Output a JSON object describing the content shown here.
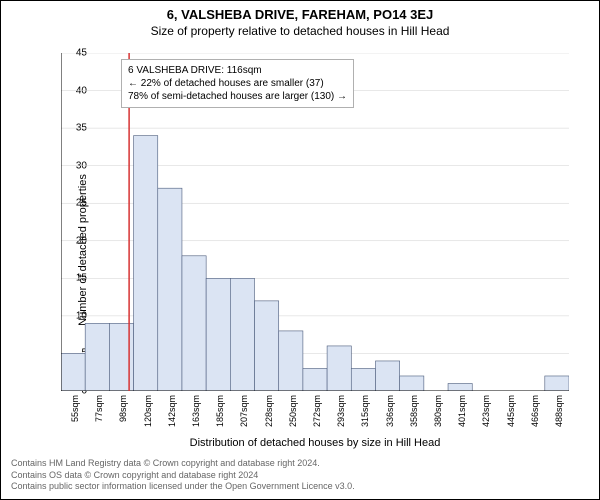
{
  "title": "6, VALSHEBA DRIVE, FAREHAM, PO14 3EJ",
  "subtitle": "Size of property relative to detached houses in Hill Head",
  "xlabel": "Distribution of detached houses by size in Hill Head",
  "ylabel": "Number of detached properties",
  "footer1": "Contains HM Land Registry data © Crown copyright and database right 2024.",
  "footer2": "Contains OS data © Crown copyright and database right 2024",
  "footer3": "Contains public sector information licensed under the Open Government Licence v3.0.",
  "callout": {
    "line1": "6 VALSHEBA DRIVE: 116sqm",
    "line2": "← 22% of detached houses are smaller (37)",
    "line3": "78% of semi-detached houses are larger (130) →"
  },
  "chart": {
    "type": "histogram",
    "bar_fill": "#dbe4f3",
    "bar_stroke": "#4a5a7a",
    "marker_line_color": "#d73333",
    "background": "#ffffff",
    "axis_color": "#000000",
    "grid_color": "#d0d0d0",
    "ylim": [
      0,
      45
    ],
    "ytick_step": 5,
    "xtick_labels": [
      "55sqm",
      "77sqm",
      "98sqm",
      "120sqm",
      "142sqm",
      "163sqm",
      "185sqm",
      "207sqm",
      "228sqm",
      "250sqm",
      "272sqm",
      "293sqm",
      "315sqm",
      "336sqm",
      "358sqm",
      "380sqm",
      "401sqm",
      "423sqm",
      "445sqm",
      "466sqm",
      "488sqm"
    ],
    "bar_values": [
      5,
      9,
      9,
      34,
      27,
      18,
      15,
      15,
      12,
      8,
      3,
      6,
      3,
      4,
      2,
      0,
      1,
      0,
      0,
      0,
      2
    ],
    "marker_x": 116,
    "x_range": [
      55,
      510
    ]
  }
}
